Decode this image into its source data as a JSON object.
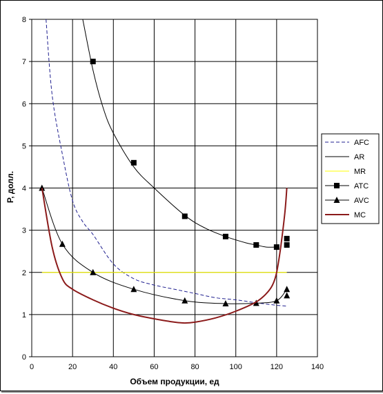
{
  "chart_data": {
    "type": "line",
    "title": "",
    "xlabel": "Объем продукции, ед",
    "ylabel": "Р, долл.",
    "xlim": [
      0,
      140
    ],
    "ylim": [
      0,
      8
    ],
    "x_ticks": [
      "0",
      "20",
      "40",
      "60",
      "80",
      "100",
      "120",
      "140"
    ],
    "y_ticks": [
      "0",
      "1",
      "2",
      "3",
      "4",
      "5",
      "6",
      "7",
      "8"
    ],
    "grid": true,
    "legend_position": "right",
    "series": [
      {
        "name": "AFC",
        "color": "#1f1f8f",
        "style": "dashed",
        "marker": "none",
        "x": [
          7,
          10,
          15,
          20,
          25,
          30,
          40,
          50,
          60,
          70,
          80,
          90,
          100,
          110,
          120,
          125
        ],
        "y": [
          8.0,
          6.2,
          4.8,
          3.7,
          3.2,
          2.9,
          2.2,
          1.85,
          1.7,
          1.6,
          1.5,
          1.4,
          1.35,
          1.28,
          1.22,
          1.2
        ]
      },
      {
        "name": "AR",
        "color": "#000000",
        "style": "solid",
        "marker": "none",
        "x": [
          25,
          30,
          35,
          40,
          50,
          60,
          75,
          85,
          95,
          105,
          110,
          115,
          120
        ],
        "y": [
          8.0,
          6.8,
          5.9,
          5.3,
          4.5,
          4.0,
          3.35,
          3.05,
          2.85,
          2.7,
          2.65,
          2.6,
          2.6
        ]
      },
      {
        "name": "MR",
        "color": "#ffff00",
        "style": "solid",
        "marker": "none",
        "x": [
          5,
          125
        ],
        "y": [
          2.0,
          2.0
        ]
      },
      {
        "name": "ATC",
        "color": "#000000",
        "style": "none",
        "marker": "square",
        "x": [
          30,
          50,
          75,
          95,
          110,
          120,
          125,
          125
        ],
        "y": [
          7.0,
          4.6,
          3.33,
          2.85,
          2.65,
          2.6,
          2.8,
          2.65
        ]
      },
      {
        "name": "AVC",
        "color": "#000000",
        "style": "solid",
        "marker": "triangle",
        "x": [
          5,
          15,
          30,
          50,
          75,
          95,
          110,
          120,
          125,
          125
        ],
        "y": [
          4.0,
          2.67,
          2.0,
          1.6,
          1.33,
          1.26,
          1.27,
          1.33,
          1.6,
          1.45
        ]
      },
      {
        "name": "MC",
        "color": "#8b1a1a",
        "style": "solid",
        "marker": "none",
        "x": [
          5,
          10,
          15,
          20,
          30,
          40,
          50,
          60,
          70,
          75,
          80,
          90,
          100,
          110,
          115,
          118,
          120,
          122,
          124,
          125
        ],
        "y": [
          4.0,
          2.6,
          1.85,
          1.6,
          1.35,
          1.15,
          1.0,
          0.9,
          0.82,
          0.8,
          0.82,
          0.92,
          1.08,
          1.3,
          1.5,
          1.7,
          2.0,
          2.6,
          3.4,
          4.0
        ]
      }
    ]
  }
}
